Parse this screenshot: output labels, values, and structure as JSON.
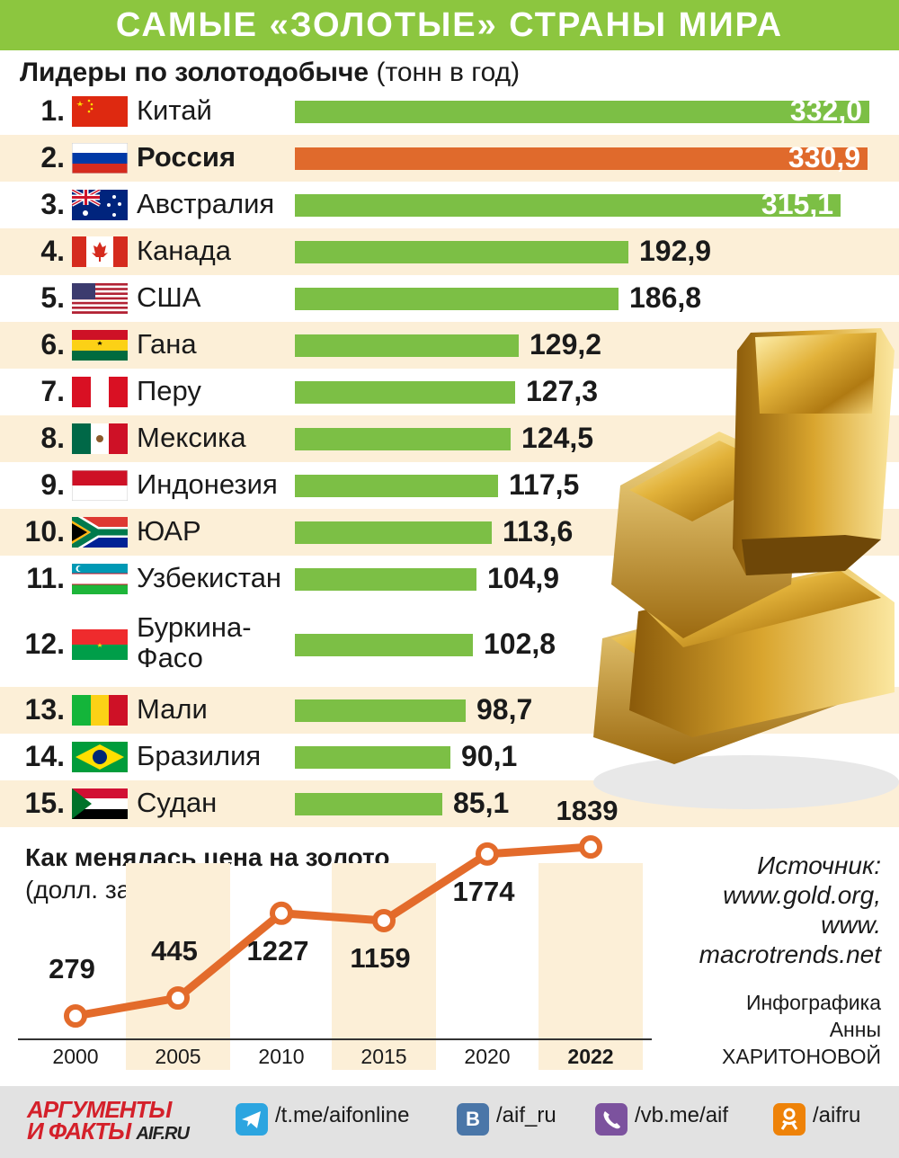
{
  "header": {
    "title": "САМЫЕ «ЗОЛОТЫЕ» СТРАНЫ МИРА"
  },
  "subtitle": {
    "bold": "Лидеры по золотодобыче",
    "unit": "(тонн в год)"
  },
  "colors": {
    "accent_green": "#8cc63f",
    "bar_green": "#7cbf45",
    "russia_bar": "#e06a2c",
    "row_highlight": "#fcefd7",
    "line": "#e36b2b",
    "year_band": "#fcefd7"
  },
  "chart_data": [
    {
      "type": "bar",
      "title": "Лидеры по золотодобыче",
      "ylabel": "(тонн в год)",
      "categories": [
        "Китай",
        "Россия",
        "Австралия",
        "Канада",
        "США",
        "Гана",
        "Перу",
        "Мексика",
        "Индонезия",
        "ЮАР",
        "Узбекистан",
        "Буркина-Фасо",
        "Мали",
        "Бразилия",
        "Судан"
      ],
      "values": [
        332.0,
        330.9,
        315.1,
        192.9,
        186.8,
        129.2,
        127.3,
        124.5,
        117.5,
        113.6,
        104.9,
        102.8,
        98.7,
        90.1,
        85.1
      ],
      "ranks": [
        "1.",
        "2.",
        "3.",
        "4.",
        "5.",
        "6.",
        "7.",
        "8.",
        "9.",
        "10.",
        "11.",
        "12.",
        "13.",
        "14.",
        "15."
      ],
      "labels": [
        "332,0",
        "330,9",
        "315,1",
        "192,9",
        "186,8",
        "129,2",
        "127,3",
        "124,5",
        "117,5",
        "113,6",
        "104,9",
        "102,8",
        "98,7",
        "90,1",
        "85,1"
      ],
      "flags": [
        "china-flag",
        "russia-flag",
        "australia-flag",
        "canada-flag",
        "usa-flag",
        "ghana-flag",
        "peru-flag",
        "mexico-flag",
        "indonesia-flag",
        "south-africa-flag",
        "uzbekistan-flag",
        "burkina-faso-flag",
        "mali-flag",
        "brazil-flag",
        "sudan-flag"
      ],
      "highlight": "Россия"
    },
    {
      "type": "line",
      "title": "Как менялась цена на золото",
      "ylabel": "(долл. за унцию)",
      "x": [
        "2000",
        "2005",
        "2010",
        "2015",
        "2020",
        "2022"
      ],
      "values": [
        279,
        445,
        1227,
        1159,
        1774,
        1839
      ],
      "labels": [
        "279",
        "445",
        "1227",
        "1159",
        "1774",
        "1839"
      ]
    }
  ],
  "source": {
    "lines": [
      "Источник:",
      "www.gold.org,",
      "www.",
      "macrotrends.net"
    ]
  },
  "credit": {
    "lines": [
      "Инфографика",
      "Анны",
      "ХАРИТОНОВОЙ"
    ]
  },
  "footer": {
    "logo_top": "АРГУМЕНТЫ",
    "logo_bottom": "И ФАКТЫ",
    "logo_site": "AIF.RU",
    "links": [
      {
        "icon": "telegram-icon",
        "text": "/t.me/aifonline"
      },
      {
        "icon": "vk-icon",
        "text": "/aif_ru"
      },
      {
        "icon": "viber-icon",
        "text": "/vb.me/aif"
      },
      {
        "icon": "odnoklassniki-icon",
        "text": "/aifru"
      }
    ]
  }
}
